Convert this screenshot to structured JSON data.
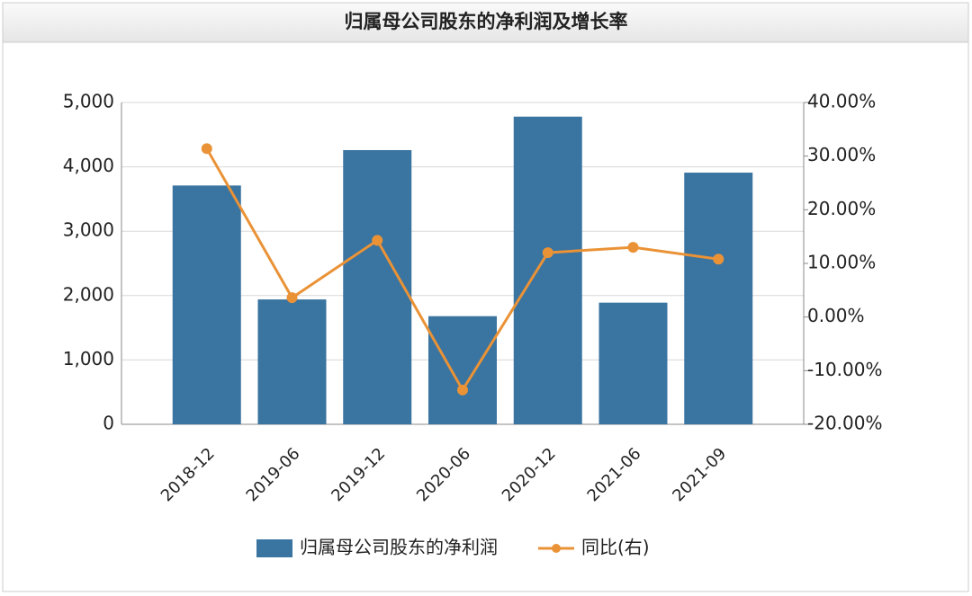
{
  "chart_data": {
    "type": "bar-line",
    "title": "归属母公司股东的净利润及增长率",
    "categories": [
      "2018-12",
      "2019-06",
      "2019-12",
      "2020-06",
      "2020-12",
      "2021-06",
      "2021-09"
    ],
    "series": [
      {
        "name": "归属母公司股东的净利润",
        "type": "bar",
        "color": "#3a74a0",
        "values": [
          3710,
          1940,
          4260,
          1680,
          4780,
          1890,
          3910
        ]
      },
      {
        "name": "同比(右)",
        "type": "line",
        "axis": "y2",
        "color": "#ea9236",
        "values": [
          31.4,
          3.6,
          14.3,
          -13.6,
          12.0,
          13.0,
          10.8
        ]
      }
    ],
    "ylim": [
      0,
      5000
    ],
    "yticks": [
      0,
      {
        "value": 1000,
        "label": "1,000"
      },
      {
        "value": 2000,
        "label": "2,000"
      },
      {
        "value": 3000,
        "label": "3,000"
      },
      {
        "value": 4000,
        "label": "4,000"
      },
      {
        "value": 5000,
        "label": "5,000"
      }
    ],
    "y2lim": [
      -20,
      40
    ],
    "y2ticks": [
      {
        "value": -20,
        "label": "-20.00%"
      },
      {
        "value": -10,
        "label": "-10.00%"
      },
      {
        "value": 0,
        "label": "0.00%"
      },
      {
        "value": 10,
        "label": "10.00%"
      },
      {
        "value": 20,
        "label": "20.00%"
      },
      {
        "value": 30,
        "label": "30.00%"
      },
      {
        "value": 40,
        "label": "40.00%"
      }
    ],
    "grid": true
  }
}
